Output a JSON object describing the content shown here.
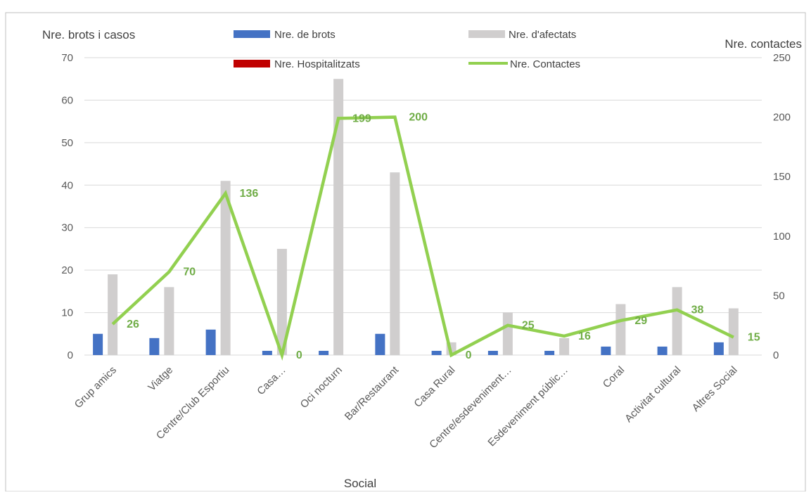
{
  "colors": {
    "brots": "#4472C4",
    "afectats": "#D0CECE",
    "hospitalitzats": "#C00000",
    "contactes": "#92D050",
    "grid": "#D9D9D9",
    "border": "#BFBFBF"
  },
  "chart_data": {
    "type": "bar",
    "title": "",
    "xlabel": "Social",
    "ylabel": "Nre. brots i casos",
    "y2label": "Nre. contactes",
    "ylim": [
      0,
      70
    ],
    "yticks": [
      0,
      10,
      20,
      30,
      40,
      50,
      60,
      70
    ],
    "y2lim": [
      0,
      250
    ],
    "y2ticks": [
      0,
      50,
      100,
      150,
      200,
      250
    ],
    "grid": true,
    "legend_position": "top",
    "categories": [
      "Grup amics",
      "Viatge",
      "Centre/Club Esportiu",
      "Casa…",
      "Oci nocturn",
      "Bar/Restaurant",
      "Casa Rural",
      "Centre/esdeveniment…",
      "Esdeveniment públic…",
      "Coral",
      "Activitat cultural",
      "Altres Social"
    ],
    "series": [
      {
        "name": "Nre. de brots",
        "type": "bar",
        "axis": "left",
        "values": [
          5,
          4,
          6,
          1,
          1,
          5,
          1,
          1,
          1,
          2,
          2,
          3
        ]
      },
      {
        "name": "Nre. d'afectats",
        "type": "bar",
        "axis": "left",
        "values": [
          19,
          16,
          41,
          25,
          65,
          43,
          3,
          10,
          4,
          12,
          16,
          11
        ]
      },
      {
        "name": "Nre. Hospitalitzats",
        "type": "bar",
        "axis": "left",
        "values": [
          0,
          0,
          0,
          0,
          0,
          0,
          0,
          0,
          0,
          0,
          0,
          0
        ]
      },
      {
        "name": "Nre. Contactes",
        "type": "line",
        "axis": "right",
        "values": [
          26,
          70,
          136,
          0,
          199,
          200,
          0,
          25,
          16,
          29,
          38,
          15
        ],
        "labels": [
          "26",
          "70",
          "136",
          "0",
          "199",
          "200",
          "0",
          "25",
          "16",
          "29",
          "38",
          "15"
        ]
      }
    ]
  }
}
